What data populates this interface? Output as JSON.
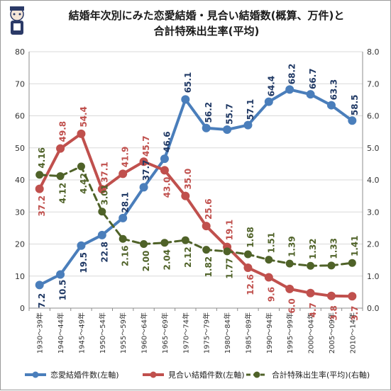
{
  "chart_data": {
    "type": "line",
    "title_lines": [
      "結婚年次別にみた恋愛結婚・見合い結婚数(概算、万件)と",
      "合計特殊出生率(平均)"
    ],
    "categories": [
      "1930～39年",
      "1940～44年",
      "1945～49年",
      "1950～54年",
      "1955～59年",
      "1960～64年",
      "1965～69年",
      "1970～74年",
      "1975～79年",
      "1980～84年",
      "1985～89年",
      "1990～94年",
      "1995～99年",
      "2000～04年",
      "2005～09年",
      "2010～14年"
    ],
    "y_left": {
      "min": 0,
      "max": 80,
      "step": 10,
      "ticks": [
        "0",
        "10",
        "20",
        "30",
        "40",
        "50",
        "60",
        "70",
        "80"
      ]
    },
    "y_right": {
      "min": 0,
      "max": 8,
      "step": 1,
      "ticks": [
        "0.0",
        "1.0",
        "2.0",
        "3.0",
        "4.0",
        "5.0",
        "6.0",
        "7.0",
        "8.0"
      ]
    },
    "grid": true,
    "legend_position": "bottom",
    "series": [
      {
        "name": "恋愛結婚件数(左軸)",
        "axis": "left",
        "style": "solid",
        "color": "#4a7ebb",
        "label_color": "#1f3864",
        "values": [
          7.2,
          10.5,
          19.5,
          22.8,
          28.1,
          37.7,
          46.6,
          65.1,
          56.2,
          55.7,
          57.1,
          64.4,
          68.2,
          66.7,
          63.3,
          58.5
        ],
        "labels": [
          "7.2",
          "10.5",
          "19.5",
          "22.8",
          "28.1",
          "37.7",
          "46.6",
          "65.1",
          "56.2",
          "55.7",
          "57.1",
          "64.4",
          "68.2",
          "66.7",
          "63.3",
          "58.5"
        ]
      },
      {
        "name": "見合い結婚件数(左軸)",
        "axis": "left",
        "style": "solid",
        "color": "#c0504d",
        "label_color": "#c0504d",
        "values": [
          37.2,
          49.8,
          54.4,
          37.1,
          41.9,
          45.7,
          43.0,
          35.0,
          25.6,
          19.1,
          12.6,
          9.6,
          6.0,
          4.7,
          3.8,
          3.7
        ],
        "labels": [
          "37.2",
          "49.8",
          "54.4",
          "37.1",
          "41.9",
          "45.7",
          "43.0",
          "35.0",
          "25.6",
          "19.1",
          "12.6",
          "9.6",
          "6.0",
          "4.7",
          "3.8",
          "3.7"
        ]
      },
      {
        "name": "合計特殊出生率(平均)(右軸)",
        "axis": "right",
        "style": "dashed",
        "color": "#4f6228",
        "label_color": "#4f6228",
        "values": [
          4.16,
          4.12,
          4.42,
          3.01,
          2.16,
          2.0,
          2.04,
          2.12,
          1.82,
          1.77,
          1.68,
          1.51,
          1.39,
          1.32,
          1.33,
          1.41
        ],
        "labels": [
          "4.16",
          "4.12",
          "4.42",
          "3.01",
          "2.16",
          "2.00",
          "2.04",
          "2.12",
          "1.82",
          "1.77",
          "1.68",
          "1.51",
          "1.39",
          "1.32",
          "1.33",
          "1.41"
        ]
      }
    ]
  },
  "logo": {
    "name": "garbagenews-logo",
    "colors": [
      "#2b3a67",
      "#ffffff"
    ]
  }
}
